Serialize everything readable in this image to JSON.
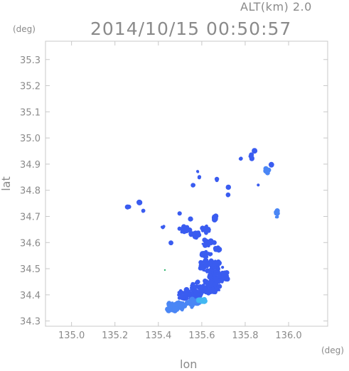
{
  "header": {
    "altitude_label": "ALT(km) 2.0",
    "timestamp": "2014/10/15 00:50:57"
  },
  "axes": {
    "y_unit": "(deg)",
    "x_unit": "(deg)",
    "y_title": "lat",
    "x_title": "lon",
    "x_ticks": [
      "135.0",
      "135.2",
      "135.4",
      "135.6",
      "135.8",
      "136.0"
    ],
    "y_ticks": [
      "35.3",
      "35.2",
      "35.1",
      "35.0",
      "34.9",
      "34.8",
      "34.7",
      "34.6",
      "34.5",
      "34.4",
      "34.3"
    ],
    "x_range": [
      134.88,
      136.18
    ],
    "y_range": [
      34.28,
      35.37
    ]
  },
  "colors": {
    "frame": "#c8c8c8",
    "text": "#8a8a8a",
    "echo_weak": "#3a5cf0",
    "echo_mid": "#4a86f5",
    "echo_strong": "#42b8f2",
    "echo_green": "#2ab36a"
  }
}
